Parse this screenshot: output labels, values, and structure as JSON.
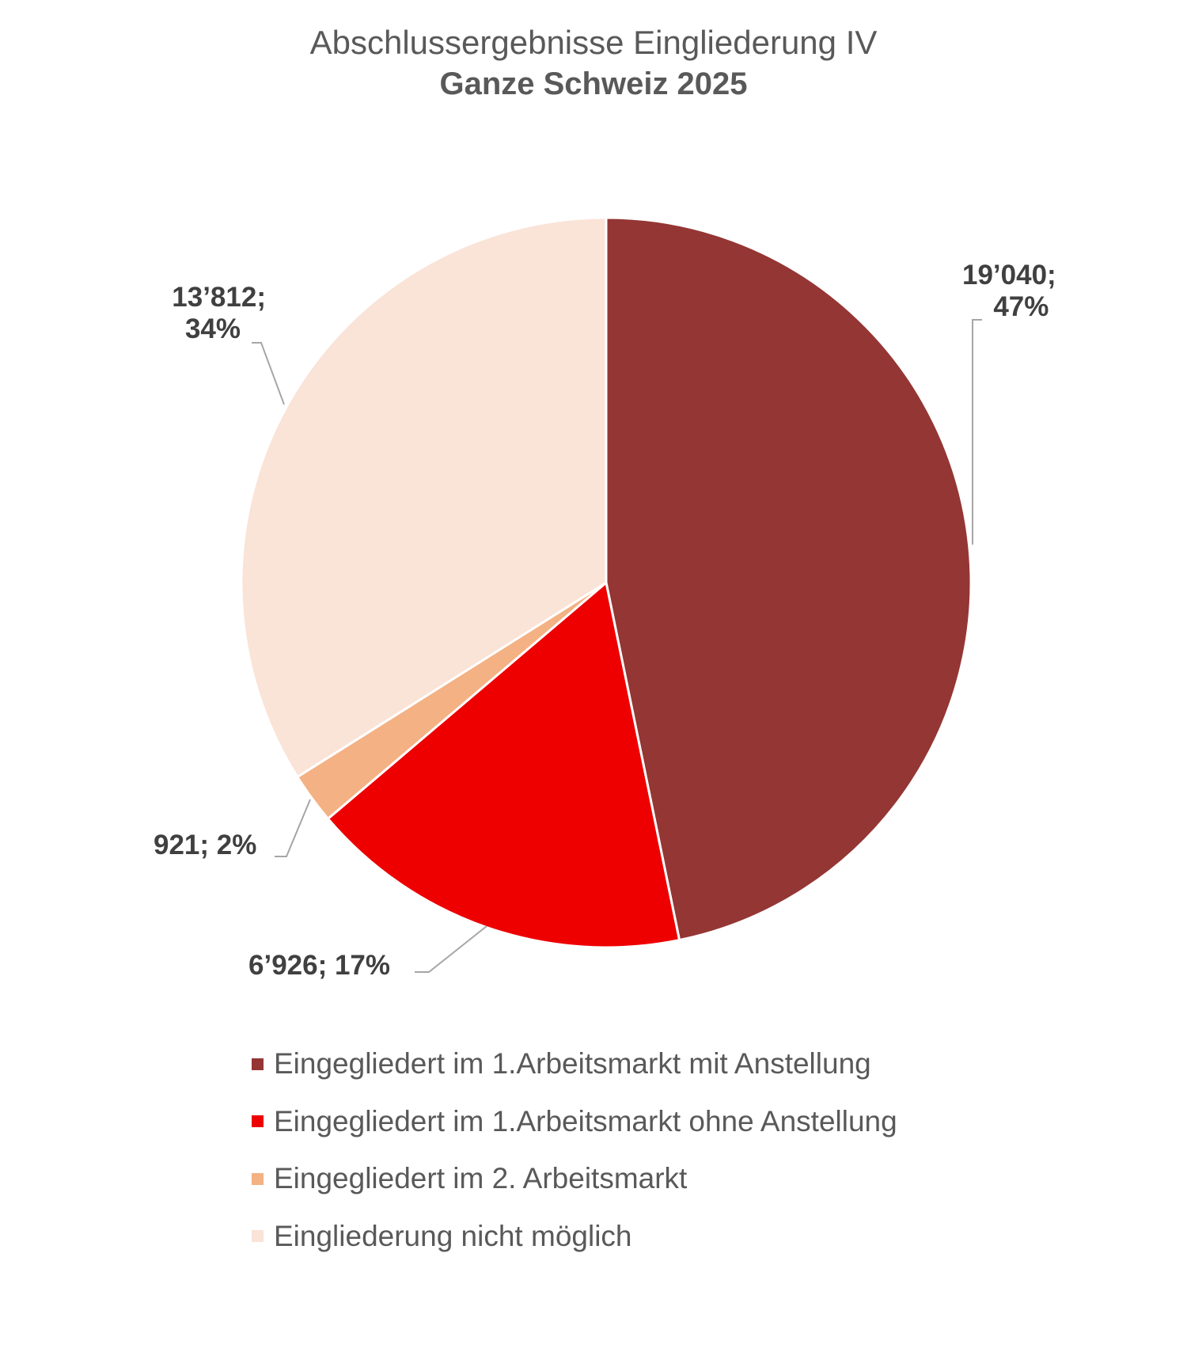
{
  "title": {
    "line1": "Abschlussergebnisse Eingliederung IV",
    "line2": "Ganze Schweiz 2025"
  },
  "labels": [
    {
      "value_text": "19’040;",
      "pct_text": "47%"
    },
    {
      "text": "6’926; 17%"
    },
    {
      "text": "921; 2%"
    },
    {
      "value_text": "13’812;",
      "pct_text": "34%"
    }
  ],
  "legend": [
    {
      "label": "Eingegliedert im 1.Arbeitsmarkt mit Anstellung",
      "color": "#943634"
    },
    {
      "label": "Eingegliedert im 1.Arbeitsmarkt ohne Anstellung",
      "color": "#EE0000"
    },
    {
      "label": "Eingegliedert im 2. Arbeitsmarkt",
      "color": "#F4B183"
    },
    {
      "label": "Eingliederung nicht möglich",
      "color": "#FAE3D7"
    }
  ],
  "chart_data": {
    "type": "pie",
    "title": "Abschlussergebnisse Eingliederung IV",
    "subtitle": "Ganze Schweiz 2025",
    "categories": [
      "Eingegliedert im 1.Arbeitsmarkt mit Anstellung",
      "Eingegliedert im 1.Arbeitsmarkt ohne Anstellung",
      "Eingegliedert im 2. Arbeitsmarkt",
      "Eingliederung nicht möglich"
    ],
    "values": [
      19040,
      6926,
      921,
      13812
    ],
    "percentages": [
      47,
      17,
      2,
      34
    ],
    "data_labels": [
      "19’040; 47%",
      "6’926; 17%",
      "921; 2%",
      "13’812; 34%"
    ],
    "colors": [
      "#943634",
      "#EE0000",
      "#F4B183",
      "#FAE3D7"
    ],
    "start_angle_deg": 0,
    "direction": "clockwise",
    "legend_position": "bottom"
  }
}
